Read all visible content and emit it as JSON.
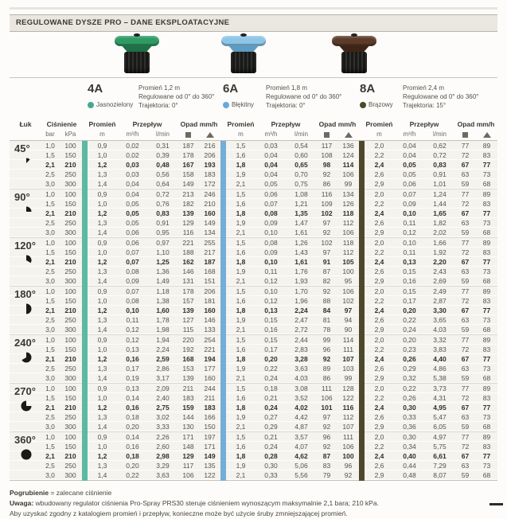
{
  "title": "REGULOWANE DYSZE PRO – DANE EKSPLOATACYJNE",
  "nozzles": [
    {
      "code": "4A",
      "color_name": "Jasnozielony",
      "dot_hex": "#45a892",
      "stripe_hex": "#5cb9a3",
      "cap_hex": "#2e9a64",
      "cap_dark_hex": "#1f7044",
      "lines": [
        "Promień 1,2 m",
        "Regulowane od 0° do 360°",
        "Trajektoria: 0°"
      ]
    },
    {
      "code": "6A",
      "color_name": "Błękitny",
      "dot_hex": "#66a9d8",
      "stripe_hex": "#74add8",
      "cap_hex": "#8cc5e6",
      "cap_dark_hex": "#5d9cc4",
      "lines": [
        "Promień 1,8 m",
        "Regulowane od 0° do 360°",
        "Trajektoria: 0°"
      ]
    },
    {
      "code": "8A",
      "color_name": "Brązowy",
      "dot_hex": "#4b4a2b",
      "stripe_hex": "#4c492b",
      "cap_hex": "#5c3c29",
      "cap_dark_hex": "#3e2416",
      "lines": [
        "Promień 2,4 m",
        "Regulowane od 0° do 360°",
        "Trajektoria: 15°"
      ]
    }
  ],
  "table": {
    "headers": {
      "arc": "Łuk",
      "pressure": "Ciśnienie",
      "radius": "Promień",
      "flow": "Przepływ",
      "precip": "Opad mm/h"
    },
    "units": {
      "bar": "bar",
      "kpa": "kPa",
      "m": "m",
      "m3h": "m³/h",
      "lmin": "l/min"
    },
    "sections": [
      {
        "arc": "45°",
        "deg": 45,
        "bold_row": 2,
        "rows": [
          [
            "1,0",
            "100",
            "0,9",
            "0,02",
            "0,31",
            "187",
            "216",
            "1,5",
            "0,03",
            "0,54",
            "117",
            "136",
            "2,0",
            "0,04",
            "0,62",
            "77",
            "89"
          ],
          [
            "1,5",
            "150",
            "1,0",
            "0,02",
            "0,39",
            "178",
            "206",
            "1,6",
            "0,04",
            "0,60",
            "108",
            "124",
            "2,2",
            "0,04",
            "0,72",
            "72",
            "83"
          ],
          [
            "2,1",
            "210",
            "1,2",
            "0,03",
            "0,48",
            "167",
            "193",
            "1,8",
            "0,04",
            "0,65",
            "98",
            "114",
            "2,4",
            "0,05",
            "0,83",
            "67",
            "77"
          ],
          [
            "2,5",
            "250",
            "1,3",
            "0,03",
            "0,56",
            "158",
            "183",
            "1,9",
            "0,04",
            "0,70",
            "92",
            "106",
            "2,6",
            "0,05",
            "0,91",
            "63",
            "73"
          ],
          [
            "3,0",
            "300",
            "1,4",
            "0,04",
            "0,64",
            "149",
            "172",
            "2,1",
            "0,05",
            "0,75",
            "86",
            "99",
            "2,9",
            "0,06",
            "1,01",
            "59",
            "68"
          ]
        ]
      },
      {
        "arc": "90°",
        "deg": 90,
        "bold_row": 2,
        "rows": [
          [
            "1,0",
            "100",
            "0,9",
            "0,04",
            "0,72",
            "213",
            "246",
            "1,5",
            "0,06",
            "1,08",
            "116",
            "134",
            "2,0",
            "0,07",
            "1,24",
            "77",
            "89"
          ],
          [
            "1,5",
            "150",
            "1,0",
            "0,05",
            "0,76",
            "182",
            "210",
            "1,6",
            "0,07",
            "1,21",
            "109",
            "126",
            "2,2",
            "0,09",
            "1,44",
            "72",
            "83"
          ],
          [
            "2,1",
            "210",
            "1,2",
            "0,05",
            "0,83",
            "139",
            "160",
            "1,8",
            "0,08",
            "1,35",
            "102",
            "118",
            "2,4",
            "0,10",
            "1,65",
            "67",
            "77"
          ],
          [
            "2,5",
            "250",
            "1,3",
            "0,05",
            "0,91",
            "129",
            "149",
            "1,9",
            "0,09",
            "1,47",
            "97",
            "112",
            "2,6",
            "0,11",
            "1,82",
            "63",
            "73"
          ],
          [
            "3,0",
            "300",
            "1,4",
            "0,06",
            "0,95",
            "116",
            "134",
            "2,1",
            "0,10",
            "1,61",
            "92",
            "106",
            "2,9",
            "0,12",
            "2,02",
            "59",
            "68"
          ]
        ]
      },
      {
        "arc": "120°",
        "deg": 120,
        "bold_row": 2,
        "rows": [
          [
            "1,0",
            "100",
            "0,9",
            "0,06",
            "0,97",
            "221",
            "255",
            "1,5",
            "0,08",
            "1,26",
            "102",
            "118",
            "2,0",
            "0,10",
            "1,66",
            "77",
            "89"
          ],
          [
            "1,5",
            "150",
            "1,0",
            "0,07",
            "1,10",
            "188",
            "217",
            "1,6",
            "0,09",
            "1,43",
            "97",
            "112",
            "2,2",
            "0,11",
            "1,92",
            "72",
            "83"
          ],
          [
            "2,1",
            "210",
            "1,2",
            "0,07",
            "1,25",
            "162",
            "187",
            "1,8",
            "0,10",
            "1,61",
            "91",
            "105",
            "2,4",
            "0,13",
            "2,20",
            "67",
            "77"
          ],
          [
            "2,5",
            "250",
            "1,3",
            "0,08",
            "1,36",
            "146",
            "168",
            "1,9",
            "0,11",
            "1,76",
            "87",
            "100",
            "2,6",
            "0,15",
            "2,43",
            "63",
            "73"
          ],
          [
            "3,0",
            "300",
            "1,4",
            "0,09",
            "1,49",
            "131",
            "151",
            "2,1",
            "0,12",
            "1,93",
            "82",
            "95",
            "2,9",
            "0,16",
            "2,69",
            "59",
            "68"
          ]
        ]
      },
      {
        "arc": "180°",
        "deg": 180,
        "bold_row": 2,
        "rows": [
          [
            "1,0",
            "100",
            "0,9",
            "0,07",
            "1,18",
            "178",
            "206",
            "1,5",
            "0,10",
            "1,70",
            "92",
            "106",
            "2,0",
            "0,15",
            "2,49",
            "77",
            "89"
          ],
          [
            "1,5",
            "150",
            "1,0",
            "0,08",
            "1,38",
            "157",
            "181",
            "1,6",
            "0,12",
            "1,96",
            "88",
            "102",
            "2,2",
            "0,17",
            "2,87",
            "72",
            "83"
          ],
          [
            "2,1",
            "210",
            "1,2",
            "0,10",
            "1,60",
            "139",
            "160",
            "1,8",
            "0,13",
            "2,24",
            "84",
            "97",
            "2,4",
            "0,20",
            "3,30",
            "67",
            "77"
          ],
          [
            "2,5",
            "250",
            "1,3",
            "0,11",
            "1,78",
            "127",
            "146",
            "1,9",
            "0,15",
            "2,47",
            "81",
            "94",
            "2,6",
            "0,22",
            "3,65",
            "63",
            "73"
          ],
          [
            "3,0",
            "300",
            "1,4",
            "0,12",
            "1,98",
            "115",
            "133",
            "2,1",
            "0,16",
            "2,72",
            "78",
            "90",
            "2,9",
            "0,24",
            "4,03",
            "59",
            "68"
          ]
        ]
      },
      {
        "arc": "240°",
        "deg": 240,
        "bold_row": 2,
        "rows": [
          [
            "1,0",
            "100",
            "0,9",
            "0,12",
            "1,94",
            "220",
            "254",
            "1,5",
            "0,15",
            "2,44",
            "99",
            "114",
            "2,0",
            "0,20",
            "3,32",
            "77",
            "89"
          ],
          [
            "1,5",
            "150",
            "1,0",
            "0,13",
            "2,24",
            "192",
            "221",
            "1,6",
            "0,17",
            "2,83",
            "96",
            "111",
            "2,2",
            "0,23",
            "3,83",
            "72",
            "83"
          ],
          [
            "2,1",
            "210",
            "1,2",
            "0,16",
            "2,59",
            "168",
            "194",
            "1,8",
            "0,20",
            "3,28",
            "92",
            "107",
            "2,4",
            "0,26",
            "4,40",
            "67",
            "77"
          ],
          [
            "2,5",
            "250",
            "1,3",
            "0,17",
            "2,86",
            "153",
            "177",
            "1,9",
            "0,22",
            "3,63",
            "89",
            "103",
            "2,6",
            "0,29",
            "4,86",
            "63",
            "73"
          ],
          [
            "3,0",
            "300",
            "1,4",
            "0,19",
            "3,17",
            "139",
            "160",
            "2,1",
            "0,24",
            "4,03",
            "86",
            "99",
            "2,9",
            "0,32",
            "5,38",
            "59",
            "68"
          ]
        ]
      },
      {
        "arc": "270°",
        "deg": 270,
        "bold_row": 2,
        "rows": [
          [
            "1,0",
            "100",
            "0,9",
            "0,13",
            "2,09",
            "211",
            "244",
            "1,5",
            "0,18",
            "3,08",
            "111",
            "128",
            "2,0",
            "0,22",
            "3,73",
            "77",
            "89"
          ],
          [
            "1,5",
            "150",
            "1,0",
            "0,14",
            "2,40",
            "183",
            "211",
            "1,6",
            "0,21",
            "3,52",
            "106",
            "122",
            "2,2",
            "0,26",
            "4,31",
            "72",
            "83"
          ],
          [
            "2,1",
            "210",
            "1,2",
            "0,16",
            "2,75",
            "159",
            "183",
            "1,8",
            "0,24",
            "4,02",
            "101",
            "116",
            "2,4",
            "0,30",
            "4,95",
            "67",
            "77"
          ],
          [
            "2,5",
            "250",
            "1,3",
            "0,18",
            "3,02",
            "144",
            "166",
            "1,9",
            "0,27",
            "4,42",
            "97",
            "112",
            "2,6",
            "0,33",
            "5,47",
            "63",
            "73"
          ],
          [
            "3,0",
            "300",
            "1,4",
            "0,20",
            "3,33",
            "130",
            "150",
            "2,1",
            "0,29",
            "4,87",
            "92",
            "107",
            "2,9",
            "0,36",
            "6,05",
            "59",
            "68"
          ]
        ]
      },
      {
        "arc": "360°",
        "deg": 360,
        "bold_row": 2,
        "rows": [
          [
            "1,0",
            "100",
            "0,9",
            "0,14",
            "2,26",
            "171",
            "197",
            "1,5",
            "0,21",
            "3,57",
            "96",
            "111",
            "2,0",
            "0,30",
            "4,97",
            "77",
            "89"
          ],
          [
            "1,5",
            "150",
            "1,0",
            "0,16",
            "2,60",
            "148",
            "171",
            "1,6",
            "0,24",
            "4,07",
            "92",
            "106",
            "2,2",
            "0,34",
            "5,75",
            "72",
            "83"
          ],
          [
            "2,1",
            "210",
            "1,2",
            "0,18",
            "2,98",
            "129",
            "149",
            "1,8",
            "0,28",
            "4,62",
            "87",
            "100",
            "2,4",
            "0,40",
            "6,61",
            "67",
            "77"
          ],
          [
            "2,5",
            "250",
            "1,3",
            "0,20",
            "3,29",
            "117",
            "135",
            "1,9",
            "0,30",
            "5,06",
            "83",
            "96",
            "2,6",
            "0,44",
            "7,29",
            "63",
            "73"
          ],
          [
            "3,0",
            "300",
            "1,4",
            "0,22",
            "3,63",
            "106",
            "122",
            "2,1",
            "0,33",
            "5,56",
            "79",
            "92",
            "2,9",
            "0,48",
            "8,07",
            "59",
            "68"
          ]
        ]
      }
    ]
  },
  "footer": {
    "lines": [
      {
        "bold": "Pogrubienie",
        "rest": " = zalecane ciśnienie"
      },
      {
        "bold": "Uwaga:",
        "rest": " wbudowany regulator ciśnienia Pro-Spray PRS30 steruje ciśnieniem wynoszącym maksymalnie 2,1 bara; 210 kPa."
      },
      {
        "bold": "",
        "rest": "Aby uzyskać zgodny z katalogiem promień i przepływ, konieczne może być użycie śruby zmniejszającej promień."
      }
    ]
  }
}
